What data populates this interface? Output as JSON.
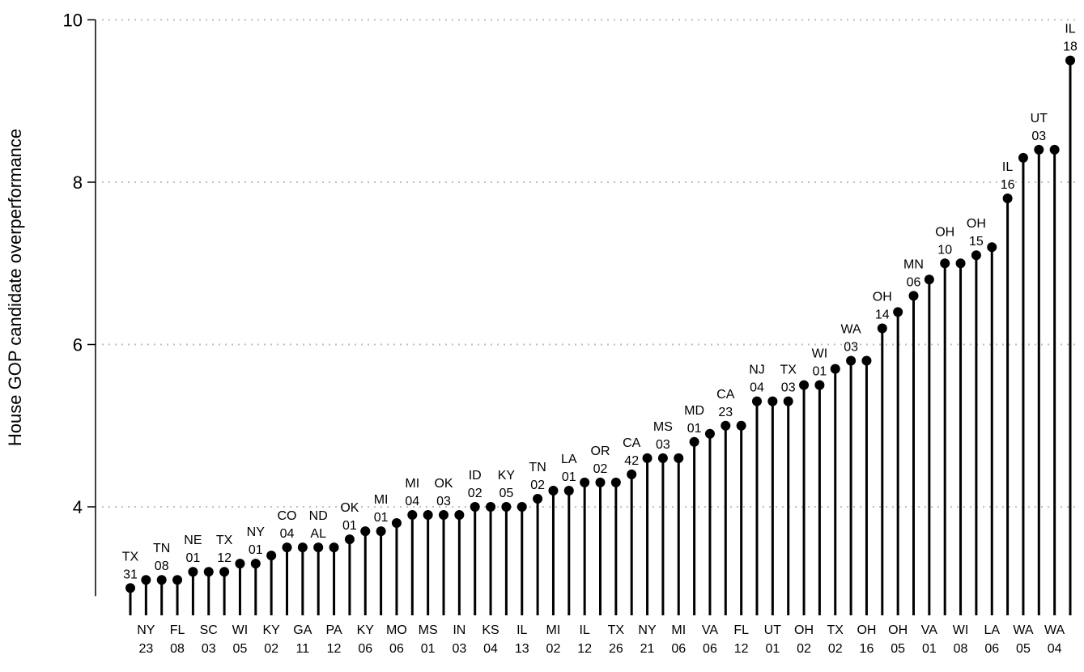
{
  "chart_data": {
    "type": "lollipop",
    "ylabel": "House GOP candidate overperformance",
    "ylim": [
      2.9,
      10
    ],
    "yticks": [
      4,
      6,
      8,
      10
    ],
    "grid": true,
    "points": [
      {
        "state": "TX",
        "district": "31",
        "value": 3.0,
        "label_pos": "top"
      },
      {
        "state": "NY",
        "district": "23",
        "value": 3.1,
        "label_pos": "bottom"
      },
      {
        "state": "TN",
        "district": "08",
        "value": 3.1,
        "label_pos": "top"
      },
      {
        "state": "FL",
        "district": "08",
        "value": 3.1,
        "label_pos": "bottom"
      },
      {
        "state": "NE",
        "district": "01",
        "value": 3.2,
        "label_pos": "top"
      },
      {
        "state": "SC",
        "district": "03",
        "value": 3.2,
        "label_pos": "bottom"
      },
      {
        "state": "TX",
        "district": "12",
        "value": 3.2,
        "label_pos": "top"
      },
      {
        "state": "WI",
        "district": "05",
        "value": 3.3,
        "label_pos": "bottom"
      },
      {
        "state": "NY",
        "district": "01",
        "value": 3.3,
        "label_pos": "top"
      },
      {
        "state": "KY",
        "district": "02",
        "value": 3.4,
        "label_pos": "bottom"
      },
      {
        "state": "CO",
        "district": "04",
        "value": 3.5,
        "label_pos": "top"
      },
      {
        "state": "GA",
        "district": "11",
        "value": 3.5,
        "label_pos": "bottom"
      },
      {
        "state": "ND",
        "district": "AL",
        "value": 3.5,
        "label_pos": "top"
      },
      {
        "state": "PA",
        "district": "12",
        "value": 3.5,
        "label_pos": "bottom"
      },
      {
        "state": "OK",
        "district": "01",
        "value": 3.6,
        "label_pos": "top"
      },
      {
        "state": "KY",
        "district": "06",
        "value": 3.7,
        "label_pos": "bottom"
      },
      {
        "state": "MI",
        "district": "01",
        "value": 3.7,
        "label_pos": "top"
      },
      {
        "state": "MO",
        "district": "06",
        "value": 3.8,
        "label_pos": "bottom"
      },
      {
        "state": "MI",
        "district": "04",
        "value": 3.9,
        "label_pos": "top"
      },
      {
        "state": "MS",
        "district": "01",
        "value": 3.9,
        "label_pos": "bottom"
      },
      {
        "state": "OK",
        "district": "03",
        "value": 3.9,
        "label_pos": "top"
      },
      {
        "state": "IN",
        "district": "03",
        "value": 3.9,
        "label_pos": "bottom"
      },
      {
        "state": "ID",
        "district": "02",
        "value": 4.0,
        "label_pos": "top"
      },
      {
        "state": "KS",
        "district": "04",
        "value": 4.0,
        "label_pos": "bottom"
      },
      {
        "state": "KY",
        "district": "05",
        "value": 4.0,
        "label_pos": "top"
      },
      {
        "state": "IL",
        "district": "13",
        "value": 4.0,
        "label_pos": "bottom"
      },
      {
        "state": "TN",
        "district": "02",
        "value": 4.1,
        "label_pos": "top"
      },
      {
        "state": "MI",
        "district": "02",
        "value": 4.2,
        "label_pos": "bottom"
      },
      {
        "state": "LA",
        "district": "01",
        "value": 4.2,
        "label_pos": "top"
      },
      {
        "state": "IL",
        "district": "12",
        "value": 4.3,
        "label_pos": "bottom"
      },
      {
        "state": "OR",
        "district": "02",
        "value": 4.3,
        "label_pos": "top"
      },
      {
        "state": "TX",
        "district": "26",
        "value": 4.3,
        "label_pos": "bottom"
      },
      {
        "state": "CA",
        "district": "42",
        "value": 4.4,
        "label_pos": "top"
      },
      {
        "state": "NY",
        "district": "21",
        "value": 4.6,
        "label_pos": "bottom"
      },
      {
        "state": "MS",
        "district": "03",
        "value": 4.6,
        "label_pos": "top"
      },
      {
        "state": "MI",
        "district": "06",
        "value": 4.6,
        "label_pos": "bottom"
      },
      {
        "state": "MD",
        "district": "01",
        "value": 4.8,
        "label_pos": "top"
      },
      {
        "state": "VA",
        "district": "06",
        "value": 4.9,
        "label_pos": "bottom"
      },
      {
        "state": "CA",
        "district": "23",
        "value": 5.0,
        "label_pos": "top"
      },
      {
        "state": "FL",
        "district": "12",
        "value": 5.0,
        "label_pos": "bottom"
      },
      {
        "state": "NJ",
        "district": "04",
        "value": 5.3,
        "label_pos": "top"
      },
      {
        "state": "UT",
        "district": "01",
        "value": 5.3,
        "label_pos": "bottom"
      },
      {
        "state": "TX",
        "district": "03",
        "value": 5.3,
        "label_pos": "top"
      },
      {
        "state": "OH",
        "district": "02",
        "value": 5.5,
        "label_pos": "bottom"
      },
      {
        "state": "WI",
        "district": "01",
        "value": 5.5,
        "label_pos": "top"
      },
      {
        "state": "TX",
        "district": "02",
        "value": 5.7,
        "label_pos": "bottom"
      },
      {
        "state": "WA",
        "district": "03",
        "value": 5.8,
        "label_pos": "top"
      },
      {
        "state": "OH",
        "district": "16",
        "value": 5.8,
        "label_pos": "bottom"
      },
      {
        "state": "OH",
        "district": "14",
        "value": 6.2,
        "label_pos": "top"
      },
      {
        "state": "OH",
        "district": "05",
        "value": 6.4,
        "label_pos": "bottom"
      },
      {
        "state": "MN",
        "district": "06",
        "value": 6.6,
        "label_pos": "top"
      },
      {
        "state": "VA",
        "district": "01",
        "value": 6.8,
        "label_pos": "bottom"
      },
      {
        "state": "OH",
        "district": "10",
        "value": 7.0,
        "label_pos": "top"
      },
      {
        "state": "WI",
        "district": "08",
        "value": 7.0,
        "label_pos": "bottom"
      },
      {
        "state": "OH",
        "district": "15",
        "value": 7.1,
        "label_pos": "top"
      },
      {
        "state": "LA",
        "district": "06",
        "value": 7.2,
        "label_pos": "bottom"
      },
      {
        "state": "IL",
        "district": "16",
        "value": 7.8,
        "label_pos": "top"
      },
      {
        "state": "WA",
        "district": "05",
        "value": 8.3,
        "label_pos": "bottom"
      },
      {
        "state": "UT",
        "district": "03",
        "value": 8.4,
        "label_pos": "top"
      },
      {
        "state": "WA",
        "district": "04",
        "value": 8.4,
        "label_pos": "bottom"
      },
      {
        "state": "IL",
        "district": "18",
        "value": 9.5,
        "label_pos": "top"
      }
    ]
  }
}
